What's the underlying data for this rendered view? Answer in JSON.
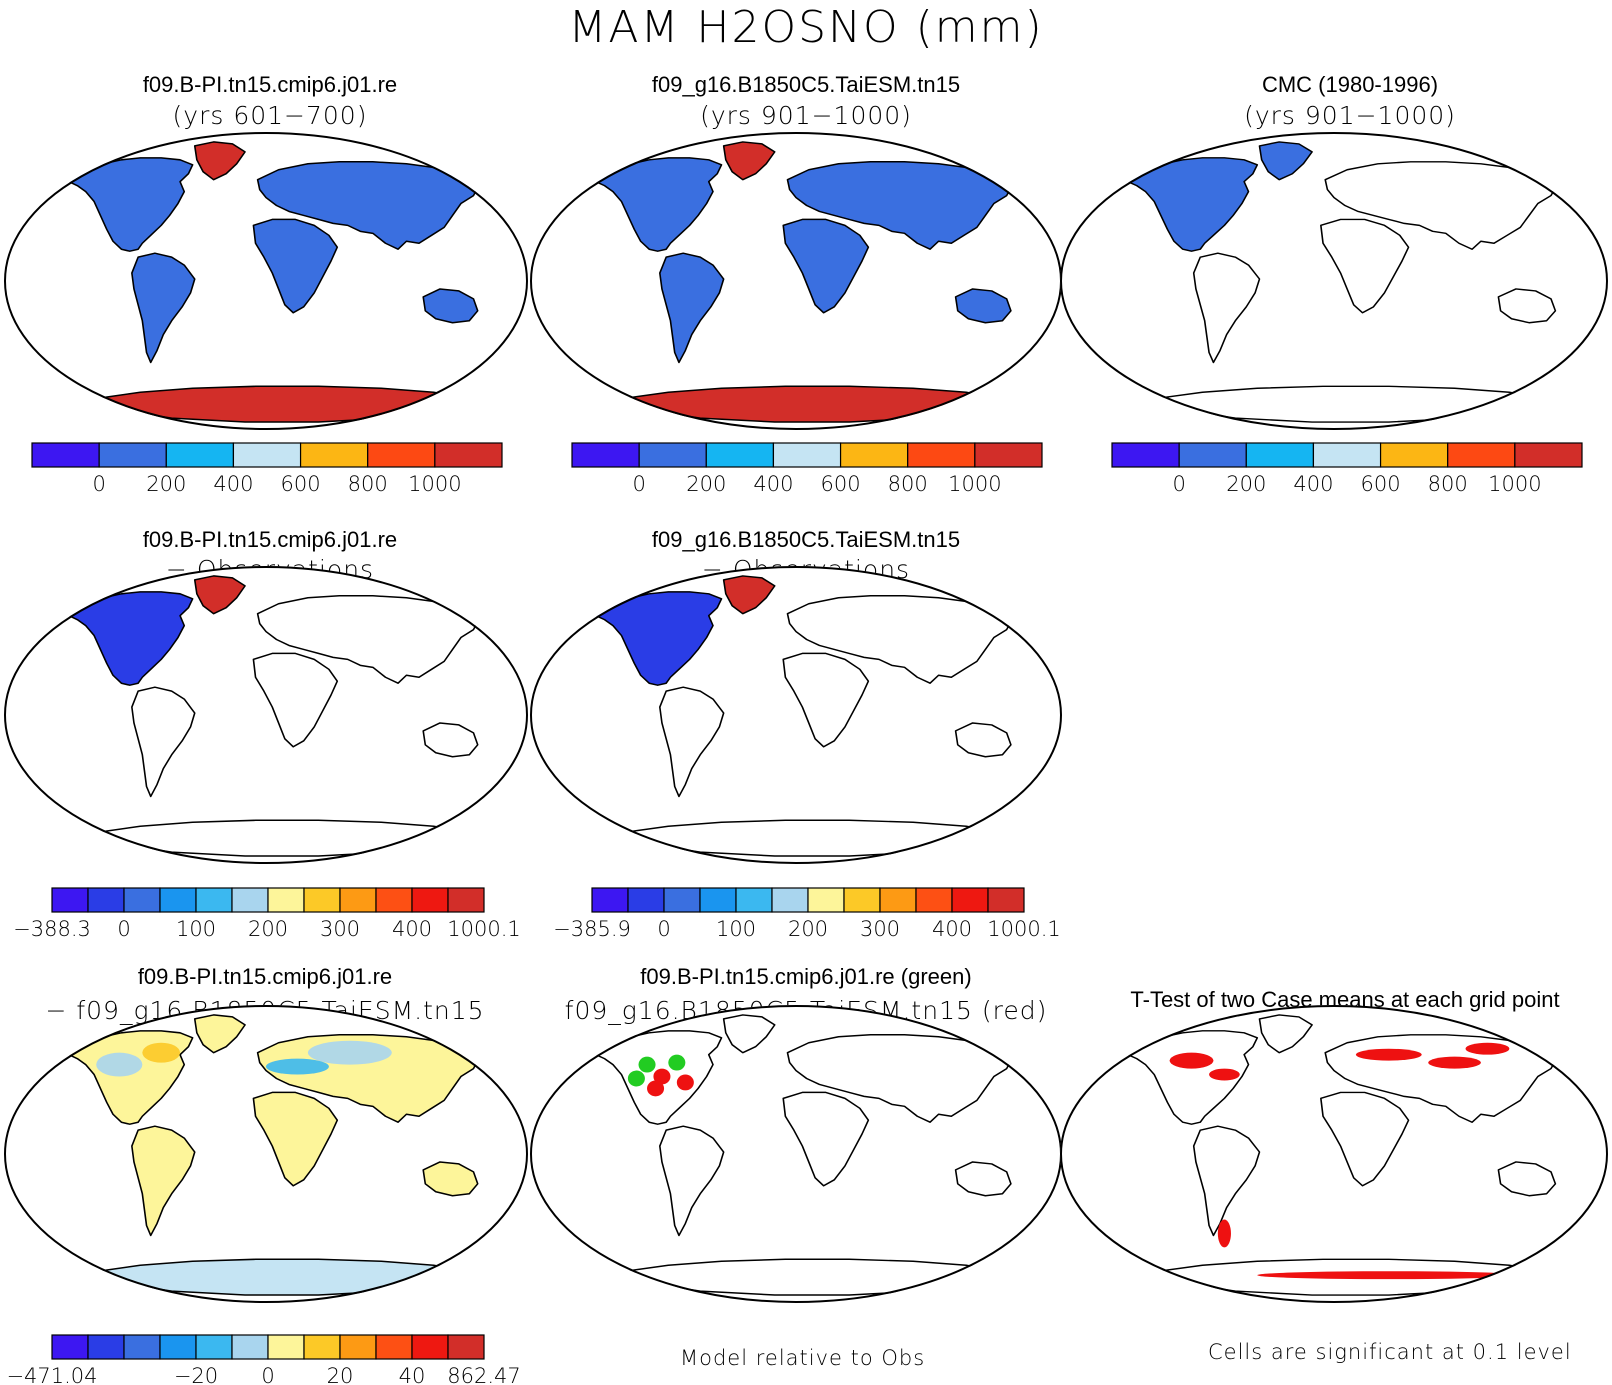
{
  "title": "MAM H2OSNO (mm)",
  "panels": [
    {
      "id": "p1",
      "line1": "f09.B-PI.tn15.cmip6.j01.re",
      "line2": "(yrs 601−700)"
    },
    {
      "id": "p2",
      "line1": "f09_g16.B1850C5.TaiESM.tn15",
      "line2": "(yrs 901−1000)"
    },
    {
      "id": "p3",
      "line1": "CMC (1980-1996)",
      "line2": "(yrs 901−1000)"
    },
    {
      "id": "p4",
      "line1": "f09.B-PI.tn15.cmip6.j01.re",
      "line2": "− Observations"
    },
    {
      "id": "p5",
      "line1": "f09_g16.B1850C5.TaiESM.tn15",
      "line2": "− Observations"
    },
    {
      "id": "p6",
      "line1": "f09.B-PI.tn15.cmip6.j01.re",
      "line2": "− f09_g16.B1850C5.TaiESM.tn15"
    },
    {
      "id": "p7",
      "line1": "f09.B-PI.tn15.cmip6.j01.re (green)",
      "line2": "f09_g16.B1850C5.TaiESM.tn15 (red)"
    },
    {
      "id": "p8",
      "line1": "T-Test of two Case means at each grid point",
      "line2": ""
    }
  ],
  "colorbars": {
    "abs": {
      "colors": [
        "#3d17f2",
        "#3a6fe0",
        "#15b5f2",
        "#c5e4f3",
        "#fcb614",
        "#fd4913",
        "#d22e29"
      ],
      "labels": [
        "0",
        "200",
        "400",
        "600",
        "800",
        "1000"
      ]
    },
    "diff1": {
      "colors": [
        "#3d17f2",
        "#2a3de6",
        "#3a6fe0",
        "#1a95ef",
        "#3bb8f0",
        "#a9d5ee",
        "#fdf59a",
        "#fcc927",
        "#fd9a14",
        "#fd5014",
        "#ee1811",
        "#d22e29"
      ],
      "labels": [
        "−388.3",
        "0",
        "100",
        "200",
        "300",
        "400",
        "1000.1"
      ]
    },
    "diff2": {
      "colors": [
        "#3d17f2",
        "#2a3de6",
        "#3a6fe0",
        "#1a95ef",
        "#3bb8f0",
        "#a9d5ee",
        "#fdf59a",
        "#fcc927",
        "#fd9a14",
        "#fd5014",
        "#ee1811",
        "#d22e29"
      ],
      "labels": [
        "−385.9",
        "0",
        "100",
        "200",
        "300",
        "400",
        "1000.1"
      ]
    },
    "diff3": {
      "colors": [
        "#3d17f2",
        "#2a3de6",
        "#3a6fe0",
        "#1a95ef",
        "#3bb8f0",
        "#a9d5ee",
        "#fdf59a",
        "#fcc927",
        "#fd9a14",
        "#fd5014",
        "#ee1811",
        "#d22e29"
      ],
      "labels": [
        "−471.04",
        "−20",
        "0",
        "20",
        "40",
        "862.47"
      ]
    }
  },
  "notes": {
    "model_relative": "Model relative to Obs",
    "significance": "Cells are significant at 0.1 level"
  }
}
